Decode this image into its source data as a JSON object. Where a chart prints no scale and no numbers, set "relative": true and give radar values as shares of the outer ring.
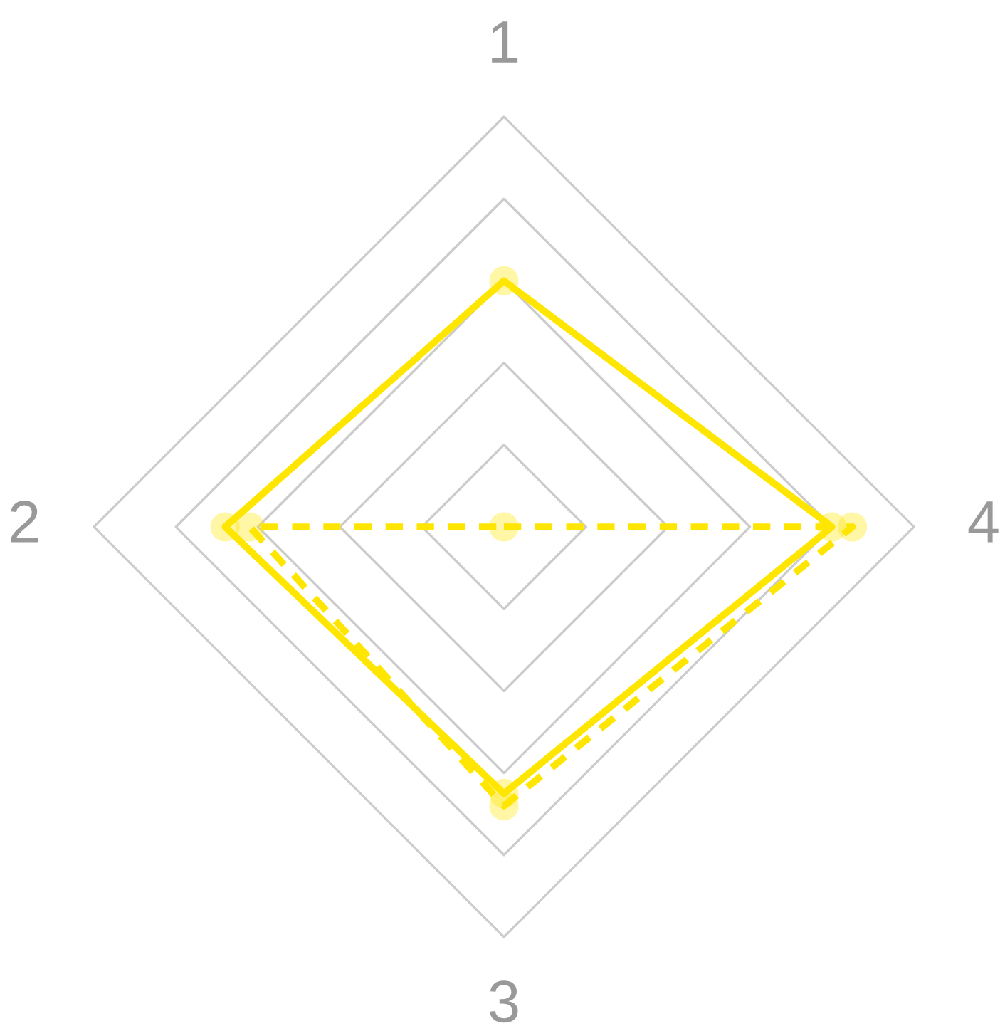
{
  "chart_data": {
    "type": "radar",
    "relative": true,
    "categories": [
      "1",
      "4",
      "3",
      "2"
    ],
    "grid": true,
    "marker": "circle",
    "series": [
      {
        "color": "#ffe600",
        "line_style": "solid",
        "values": [
          0.6,
          0.8,
          0.65,
          0.68
        ]
      },
      {
        "color": "#ffe600",
        "line_style": "dashed",
        "values": [
          0,
          0.85,
          0.68,
          0.62
        ]
      }
    ]
  }
}
